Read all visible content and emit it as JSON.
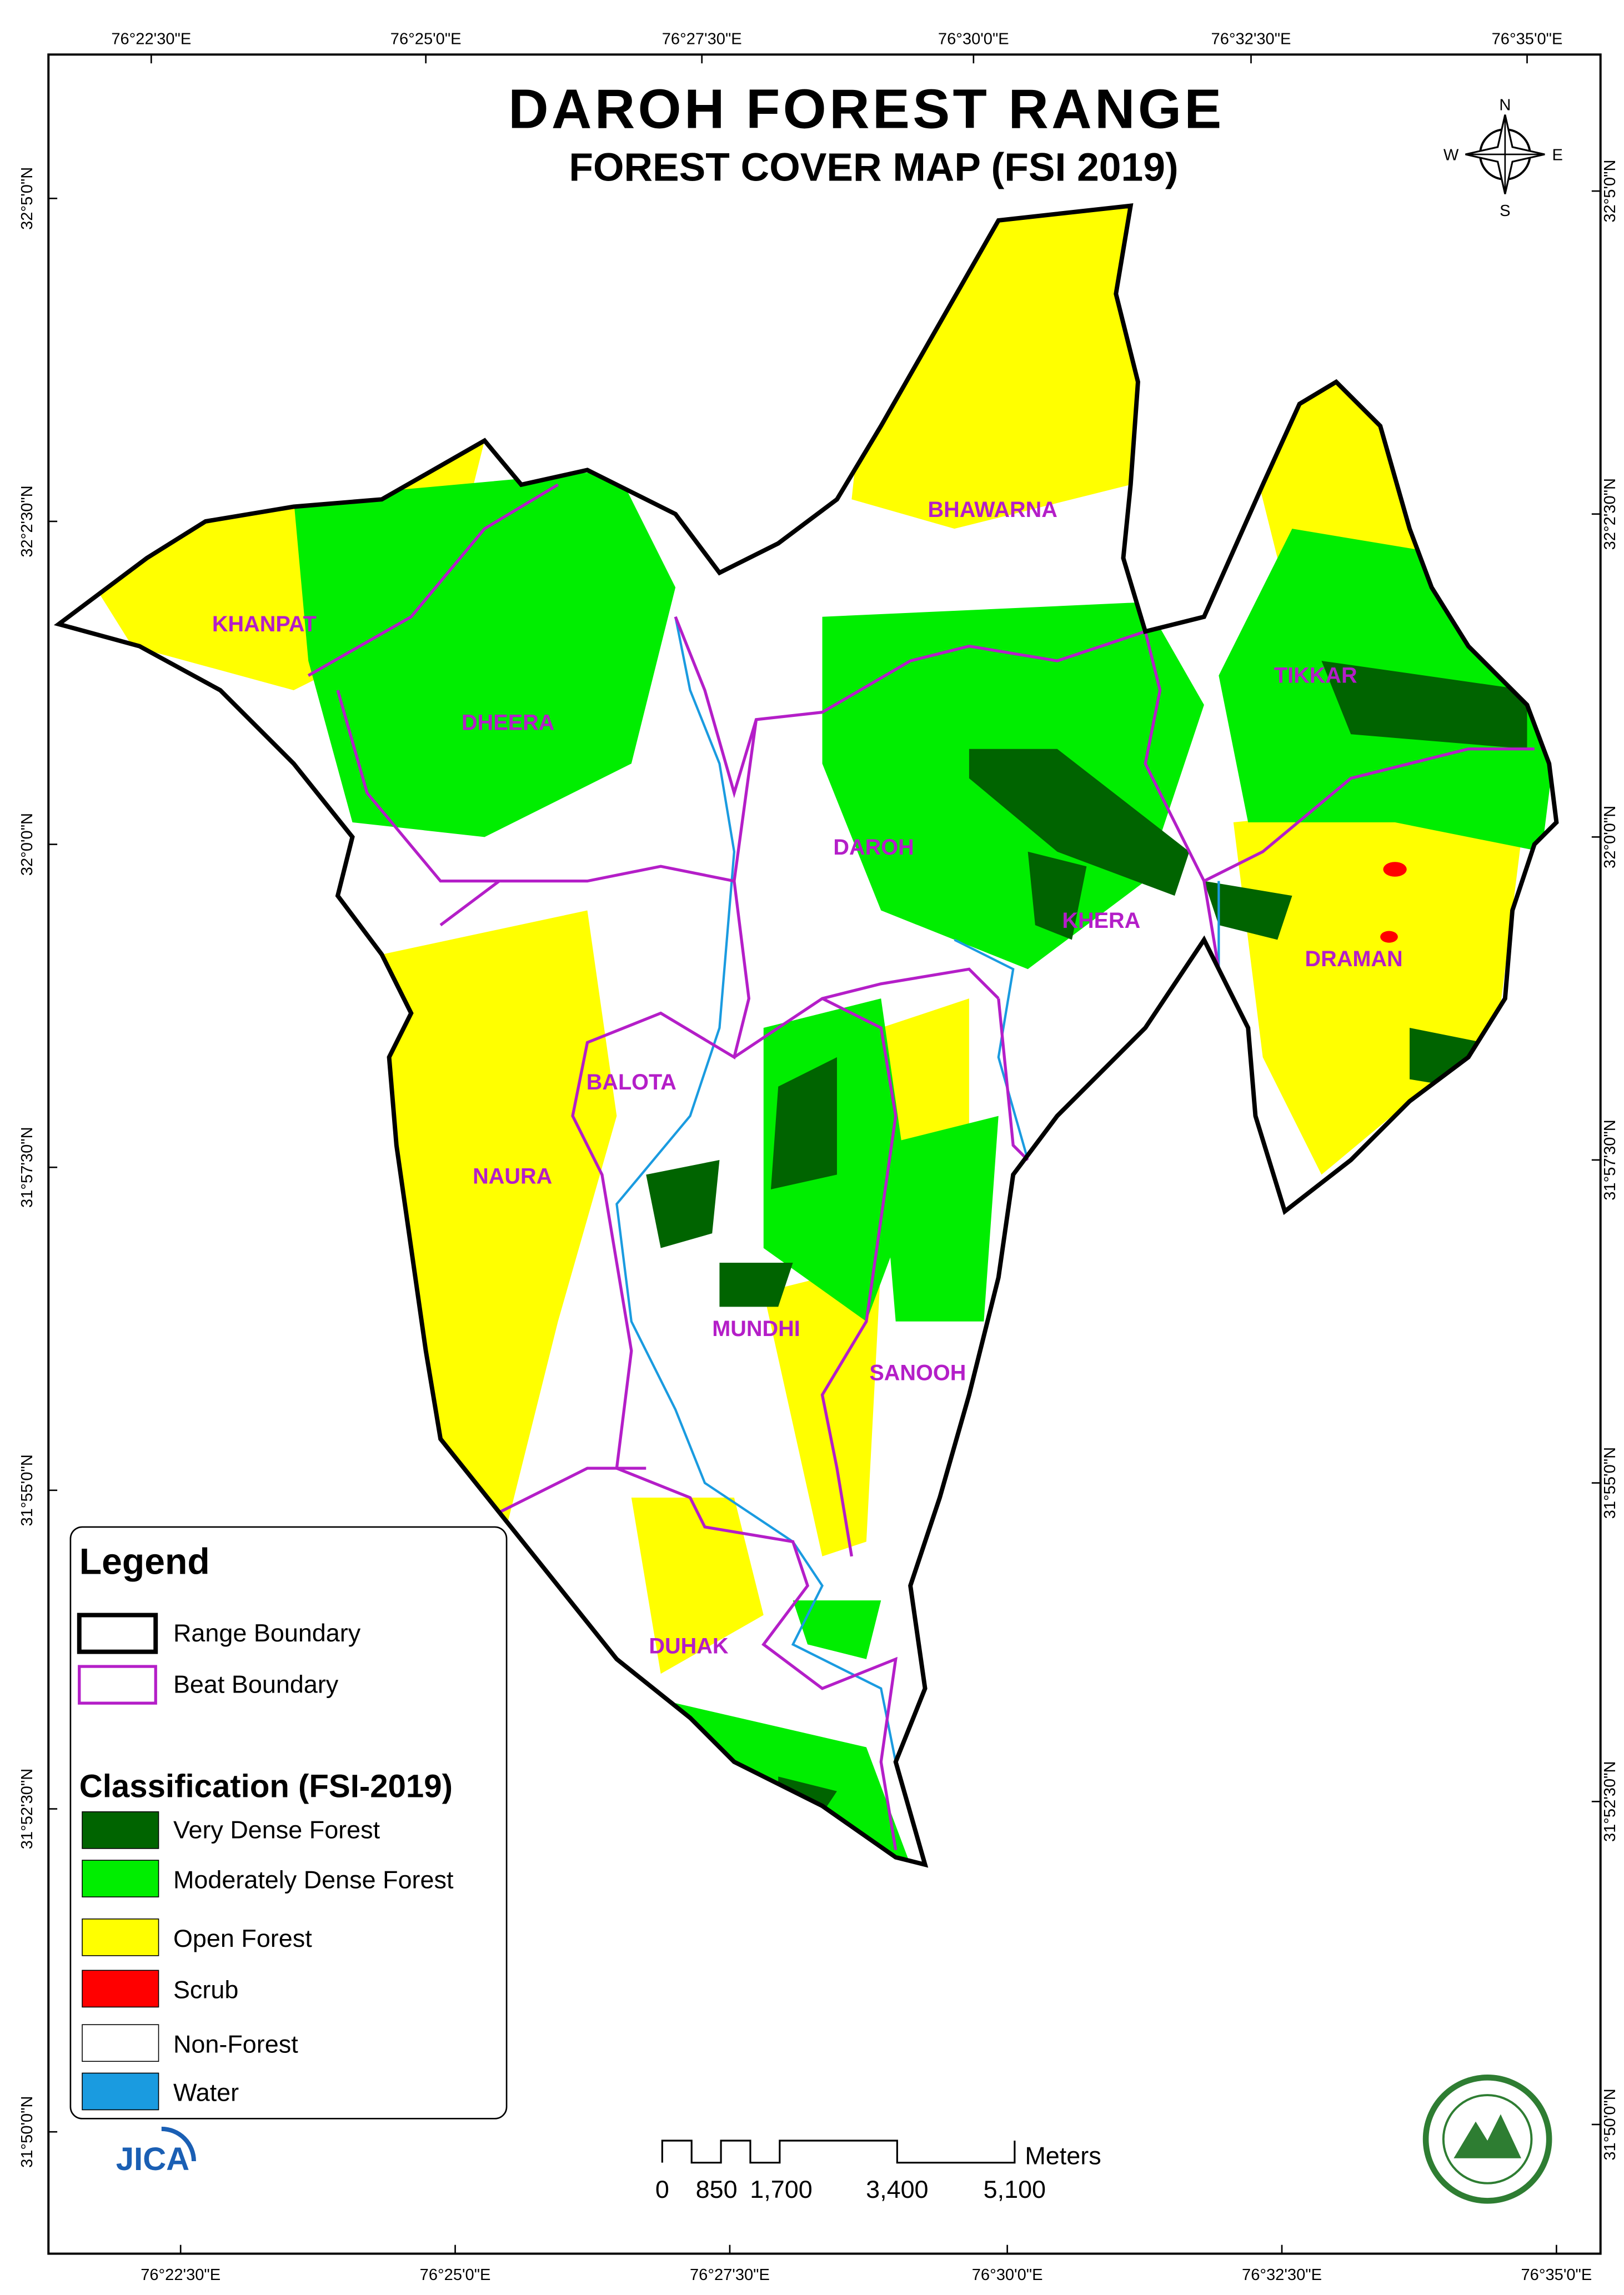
{
  "header": {
    "title": "DAROH FOREST RANGE",
    "subtitle": "FOREST COVER MAP (FSI 2019)"
  },
  "longitudes": [
    "76°22'30\"E",
    "76°25'0\"E",
    "76°27'30\"E",
    "76°30'0\"E",
    "76°32'30\"E",
    "76°35'0\"E"
  ],
  "latitudes": [
    "32°5'0\"N",
    "32°2'30\"N",
    "32°0'0\"N",
    "31°57'30\"N",
    "31°55'0\"N",
    "31°52'30\"N",
    "31°50'0\"N"
  ],
  "compass": {
    "n": "N",
    "s": "S",
    "e": "E",
    "w": "W"
  },
  "beats": [
    "BHAWARNA",
    "KHANPAT",
    "DHEERA",
    "TIKKAR",
    "DAROH",
    "KHERA",
    "DRAMAN",
    "BALOTA",
    "NAURA",
    "MUNDHI",
    "SANOOH",
    "DUHAK"
  ],
  "legend": {
    "title": "Legend",
    "boundaries": [
      "Range Boundary",
      "Beat Boundary"
    ],
    "classification_title": "Classification (FSI-2019)",
    "classes": [
      "Very Dense Forest",
      "Moderately Dense Forest",
      "Open Forest",
      "Scrub",
      "Non-Forest",
      "Water"
    ]
  },
  "scale_bar": {
    "labels": [
      "0",
      "850",
      "1,700",
      "3,400",
      "5,100"
    ],
    "unit": "Meters"
  },
  "logo": "JICA"
}
